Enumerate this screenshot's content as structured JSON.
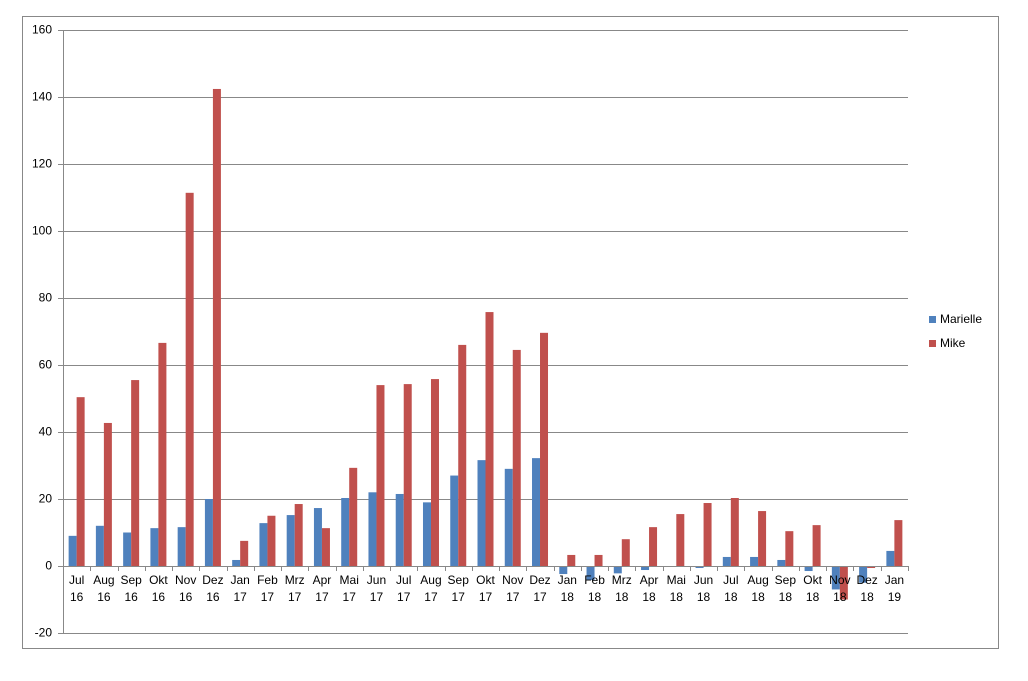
{
  "chart_data": {
    "type": "bar",
    "categories": [
      "Jul 16",
      "Aug 16",
      "Sep 16",
      "Okt 16",
      "Nov 16",
      "Dez 16",
      "Jan 17",
      "Feb 17",
      "Mrz 17",
      "Apr 17",
      "Mai 17",
      "Jun 17",
      "Jul 17",
      "Aug 17",
      "Sep 17",
      "Okt 17",
      "Nov 17",
      "Dez 17",
      "Jan 18",
      "Feb 18",
      "Mrz 18",
      "Apr 18",
      "Mai 18",
      "Jun 18",
      "Jul 18",
      "Aug 18",
      "Sep 18",
      "Okt 18",
      "Nov 18",
      "Dez 18",
      "Jan 19"
    ],
    "series": [
      {
        "name": "Marielle",
        "color": "#4f81bd",
        "values": [
          9,
          12,
          10,
          11.3,
          11.6,
          20,
          1.8,
          12.8,
          15.2,
          17.3,
          20.3,
          22,
          21.5,
          19,
          27,
          31.6,
          29,
          32.2,
          -2.4,
          -4.2,
          -2.2,
          -1.2,
          0,
          -0.6,
          2.7,
          2.7,
          1.8,
          -1.5,
          -7,
          -5,
          4.5
        ]
      },
      {
        "name": "Mike",
        "color": "#c0504d",
        "values": [
          50.4,
          42.7,
          55.5,
          66.6,
          111.4,
          142.4,
          7.5,
          15,
          18.5,
          11.3,
          29.3,
          54,
          54.3,
          55.8,
          66,
          75.8,
          64.5,
          69.6,
          3.3,
          3.3,
          8,
          11.6,
          15.5,
          18.8,
          20.3,
          16.4,
          10.4,
          12.2,
          -10,
          -0.6,
          13.7
        ]
      }
    ],
    "ylim": [
      -20,
      160
    ],
    "yticks": [
      -20,
      0,
      20,
      40,
      60,
      80,
      100,
      120,
      140,
      160
    ],
    "grid": true,
    "legend": "right"
  }
}
